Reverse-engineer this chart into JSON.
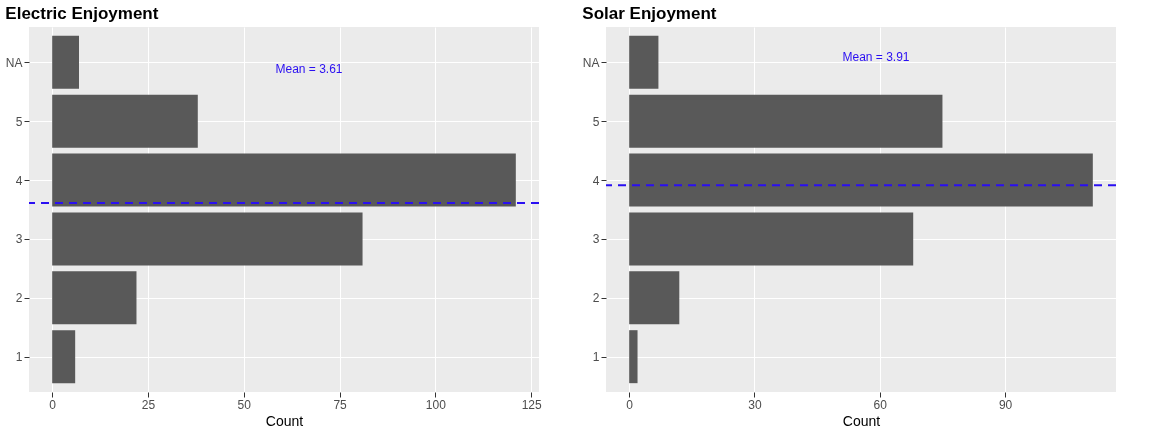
{
  "chart_data": [
    {
      "type": "bar",
      "orientation": "horizontal",
      "title": "Electric Enjoyment",
      "xlabel": "Count",
      "x": [
        6,
        5,
        4,
        3,
        2,
        1
      ],
      "values": [
        7,
        38,
        121,
        81,
        22,
        6
      ],
      "color": "#595959",
      "xlim": [
        -6.05,
        127.05
      ],
      "xticks": [
        0,
        25,
        50,
        75,
        100,
        125
      ],
      "ylim": [
        0.4,
        6.6
      ],
      "yticks": [
        1,
        2,
        3,
        4,
        5,
        {
          "value": 6,
          "label": "NA"
        }
      ],
      "grid": true,
      "ref_lines": [
        {
          "axis": "y",
          "value": 3.61,
          "label": "Mean = 3.61",
          "color": "#2a0ff2",
          "line_style": "dashed"
        }
      ]
    },
    {
      "type": "bar",
      "orientation": "horizontal",
      "title": "Solar Enjoyment",
      "xlabel": "Count",
      "x": [
        6,
        5,
        4,
        3,
        2,
        1
      ],
      "values": [
        7,
        75,
        111,
        68,
        12,
        2
      ],
      "color": "#595959",
      "xlim": [
        -5.55,
        116.55
      ],
      "xticks": [
        0,
        30,
        60,
        90
      ],
      "ylim": [
        0.4,
        6.6
      ],
      "yticks": [
        1,
        2,
        3,
        4,
        5,
        {
          "value": 6,
          "label": "NA"
        }
      ],
      "grid": true,
      "ref_lines": [
        {
          "axis": "y",
          "value": 3.91,
          "label": "Mean = 3.91",
          "color": "#2a0ff2",
          "line_style": "dashed"
        }
      ]
    }
  ]
}
